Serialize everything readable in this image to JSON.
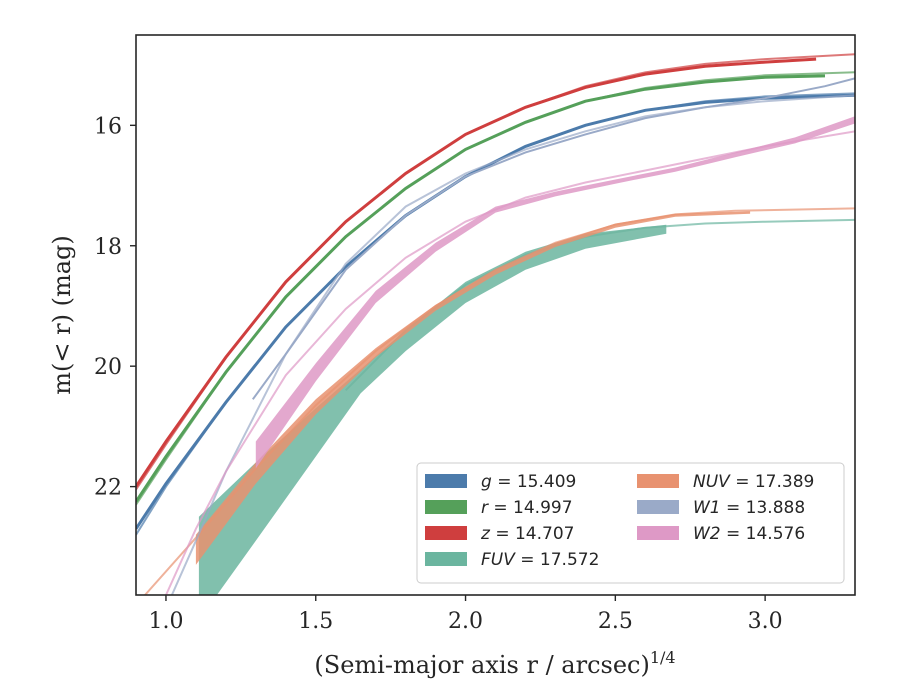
{
  "chart_data": {
    "type": "line",
    "xlabel": "(Semi-major axis r / arcsec)",
    "xlabel_sup": "1/4",
    "ylabel": "m(< r) (mag)",
    "xlim": [
      0.9,
      3.3
    ],
    "ylim": [
      23.8,
      14.5
    ],
    "y_inverted": true,
    "x_ticks": [
      1.0,
      1.5,
      2.0,
      2.5,
      3.0
    ],
    "x_tick_labels": [
      "1.0",
      "1.5",
      "2.0",
      "2.5",
      "3.0"
    ],
    "y_ticks": [
      16,
      18,
      20,
      22
    ],
    "y_tick_labels": [
      "16",
      "18",
      "20",
      "22"
    ],
    "grid": false,
    "legend_placement": "lower-right",
    "series": [
      {
        "name": "g = 15.409",
        "band": "g",
        "value": "15.409",
        "color": "#4c7bab",
        "fit": [
          [
            0.9,
            22.8
          ],
          [
            1.0,
            22.0
          ],
          [
            1.2,
            20.6
          ],
          [
            1.4,
            19.35
          ],
          [
            1.6,
            18.35
          ],
          [
            1.8,
            17.5
          ],
          [
            2.0,
            16.85
          ],
          [
            2.2,
            16.35
          ],
          [
            2.4,
            16.0
          ],
          [
            2.6,
            15.75
          ],
          [
            2.8,
            15.6
          ],
          [
            3.0,
            15.52
          ],
          [
            3.3,
            15.47
          ]
        ],
        "data": [
          [
            0.9,
            22.7
          ],
          [
            1.0,
            21.95
          ],
          [
            1.2,
            20.6
          ],
          [
            1.4,
            19.35
          ],
          [
            1.6,
            18.35
          ],
          [
            1.8,
            17.5
          ],
          [
            2.0,
            16.85
          ],
          [
            2.2,
            16.35
          ],
          [
            2.4,
            16.0
          ],
          [
            2.6,
            15.75
          ],
          [
            2.8,
            15.62
          ],
          [
            3.0,
            15.55
          ],
          [
            3.3,
            15.5
          ]
        ],
        "width": 3
      },
      {
        "name": "r = 14.997",
        "band": "r",
        "value": "14.997",
        "color": "#55a05a",
        "fit": [
          [
            0.9,
            22.3
          ],
          [
            1.0,
            21.55
          ],
          [
            1.2,
            20.1
          ],
          [
            1.4,
            18.85
          ],
          [
            1.6,
            17.85
          ],
          [
            1.8,
            17.05
          ],
          [
            2.0,
            16.4
          ],
          [
            2.2,
            15.95
          ],
          [
            2.4,
            15.6
          ],
          [
            2.6,
            15.38
          ],
          [
            2.8,
            15.25
          ],
          [
            3.0,
            15.17
          ],
          [
            3.3,
            15.12
          ]
        ],
        "data": [
          [
            0.9,
            22.25
          ],
          [
            1.0,
            21.5
          ],
          [
            1.2,
            20.1
          ],
          [
            1.4,
            18.85
          ],
          [
            1.6,
            17.85
          ],
          [
            1.8,
            17.05
          ],
          [
            2.0,
            16.4
          ],
          [
            2.2,
            15.95
          ],
          [
            2.4,
            15.6
          ],
          [
            2.6,
            15.4
          ],
          [
            2.8,
            15.28
          ],
          [
            3.0,
            15.2
          ],
          [
            3.2,
            15.18
          ]
        ],
        "width": 3
      },
      {
        "name": "z = 14.707",
        "band": "z",
        "value": "14.707",
        "color": "#cf3e3e",
        "fit": [
          [
            0.9,
            22.05
          ],
          [
            1.0,
            21.3
          ],
          [
            1.2,
            19.85
          ],
          [
            1.4,
            18.6
          ],
          [
            1.6,
            17.6
          ],
          [
            1.8,
            16.8
          ],
          [
            2.0,
            16.15
          ],
          [
            2.2,
            15.7
          ],
          [
            2.4,
            15.35
          ],
          [
            2.6,
            15.12
          ],
          [
            2.8,
            14.98
          ],
          [
            3.0,
            14.9
          ],
          [
            3.3,
            14.82
          ]
        ],
        "data": [
          [
            0.9,
            22.0
          ],
          [
            1.0,
            21.25
          ],
          [
            1.2,
            19.85
          ],
          [
            1.4,
            18.6
          ],
          [
            1.6,
            17.6
          ],
          [
            1.8,
            16.8
          ],
          [
            2.0,
            16.15
          ],
          [
            2.2,
            15.7
          ],
          [
            2.4,
            15.37
          ],
          [
            2.6,
            15.15
          ],
          [
            2.8,
            15.02
          ],
          [
            3.0,
            14.95
          ],
          [
            3.17,
            14.9
          ]
        ],
        "width": 3
      },
      {
        "name": "FUV = 17.572",
        "band": "FUV",
        "value": "17.572",
        "color": "#6bb59f",
        "fit": [
          [
            1.6,
            20.4
          ],
          [
            1.8,
            19.4
          ],
          [
            2.0,
            18.65
          ],
          [
            2.2,
            18.15
          ],
          [
            2.4,
            17.85
          ],
          [
            2.6,
            17.7
          ],
          [
            2.8,
            17.63
          ],
          [
            3.0,
            17.6
          ],
          [
            3.3,
            17.57
          ]
        ],
        "band_upper": [
          [
            1.11,
            22.5
          ],
          [
            1.3,
            21.6
          ],
          [
            1.5,
            20.7
          ],
          [
            1.65,
            20.05
          ],
          [
            1.8,
            19.4
          ],
          [
            2.0,
            18.6
          ],
          [
            2.2,
            18.1
          ],
          [
            2.4,
            17.8
          ],
          [
            2.67,
            17.65
          ]
        ],
        "band_lower": [
          [
            1.11,
            23.8
          ],
          [
            1.17,
            23.8
          ],
          [
            1.3,
            22.9
          ],
          [
            1.5,
            21.5
          ],
          [
            1.65,
            20.45
          ],
          [
            1.8,
            19.75
          ],
          [
            2.0,
            18.95
          ],
          [
            2.2,
            18.4
          ],
          [
            2.4,
            18.05
          ],
          [
            2.67,
            17.8
          ]
        ]
      },
      {
        "name": "NUV = 17.389",
        "band": "NUV",
        "value": "17.389",
        "color": "#e89270",
        "fit": [
          [
            0.93,
            23.8
          ],
          [
            1.1,
            22.85
          ],
          [
            1.3,
            21.7
          ],
          [
            1.5,
            20.65
          ],
          [
            1.7,
            19.75
          ],
          [
            1.9,
            19.0
          ],
          [
            2.1,
            18.4
          ],
          [
            2.3,
            17.95
          ],
          [
            2.5,
            17.65
          ],
          [
            2.7,
            17.48
          ],
          [
            2.9,
            17.42
          ],
          [
            3.3,
            17.38
          ]
        ],
        "band_upper": [
          [
            1.1,
            22.8
          ],
          [
            1.3,
            21.6
          ],
          [
            1.5,
            20.55
          ],
          [
            1.7,
            19.7
          ],
          [
            1.9,
            18.98
          ],
          [
            2.1,
            18.4
          ],
          [
            2.3,
            17.95
          ],
          [
            2.5,
            17.63
          ],
          [
            2.7,
            17.47
          ],
          [
            2.95,
            17.43
          ]
        ],
        "band_lower": [
          [
            1.1,
            23.3
          ],
          [
            1.3,
            21.95
          ],
          [
            1.5,
            20.8
          ],
          [
            1.7,
            19.85
          ],
          [
            1.9,
            19.08
          ],
          [
            2.1,
            18.48
          ],
          [
            2.3,
            18.02
          ],
          [
            2.5,
            17.7
          ],
          [
            2.7,
            17.52
          ],
          [
            2.95,
            17.47
          ]
        ]
      },
      {
        "name": "W1 = 13.888",
        "band": "W1",
        "value": "13.888",
        "color": "#9aaac8",
        "fit": [
          [
            1.02,
            23.8
          ],
          [
            1.1,
            22.9
          ],
          [
            1.2,
            21.75
          ],
          [
            1.4,
            19.8
          ],
          [
            1.6,
            18.3
          ],
          [
            1.8,
            17.35
          ],
          [
            2.0,
            16.8
          ],
          [
            2.2,
            16.4
          ],
          [
            2.4,
            16.1
          ],
          [
            2.6,
            15.85
          ],
          [
            2.8,
            15.7
          ],
          [
            3.0,
            15.6
          ],
          [
            3.3,
            15.5
          ]
        ],
        "data": [
          [
            1.29,
            20.55
          ],
          [
            1.4,
            19.8
          ],
          [
            1.6,
            18.4
          ],
          [
            1.8,
            17.5
          ],
          [
            2.0,
            16.85
          ],
          [
            2.2,
            16.45
          ],
          [
            2.4,
            16.15
          ],
          [
            2.6,
            15.88
          ],
          [
            2.8,
            15.7
          ],
          [
            3.0,
            15.55
          ],
          [
            3.2,
            15.35
          ],
          [
            3.3,
            15.22
          ]
        ],
        "width": 2
      },
      {
        "name": "W2 = 14.576",
        "band": "W2",
        "value": "14.576",
        "color": "#de99c6",
        "fit": [
          [
            1.0,
            23.8
          ],
          [
            1.1,
            22.7
          ],
          [
            1.2,
            21.75
          ],
          [
            1.4,
            20.15
          ],
          [
            1.6,
            19.05
          ],
          [
            1.8,
            18.2
          ],
          [
            2.0,
            17.6
          ],
          [
            2.2,
            17.2
          ],
          [
            2.4,
            16.95
          ],
          [
            2.6,
            16.75
          ],
          [
            2.8,
            16.55
          ],
          [
            3.0,
            16.35
          ],
          [
            3.3,
            16.1
          ]
        ],
        "band_upper": [
          [
            1.3,
            21.25
          ],
          [
            1.5,
            19.95
          ],
          [
            1.7,
            18.75
          ],
          [
            1.9,
            17.95
          ],
          [
            2.1,
            17.35
          ],
          [
            2.3,
            17.1
          ],
          [
            2.5,
            16.9
          ],
          [
            2.7,
            16.7
          ],
          [
            2.9,
            16.45
          ],
          [
            3.1,
            16.2
          ],
          [
            3.3,
            15.85
          ]
        ],
        "band_lower": [
          [
            1.3,
            21.7
          ],
          [
            1.5,
            20.25
          ],
          [
            1.7,
            18.95
          ],
          [
            1.9,
            18.1
          ],
          [
            2.1,
            17.45
          ],
          [
            2.3,
            17.18
          ],
          [
            2.5,
            16.97
          ],
          [
            2.7,
            16.77
          ],
          [
            2.9,
            16.53
          ],
          [
            3.1,
            16.3
          ],
          [
            3.3,
            15.97
          ]
        ]
      }
    ],
    "legend": [
      {
        "band": "g",
        "value": "15.409",
        "color": "#4c7bab"
      },
      {
        "band": "r",
        "value": "14.997",
        "color": "#55a05a"
      },
      {
        "band": "z",
        "value": "14.707",
        "color": "#cf3e3e"
      },
      {
        "band": "FUV",
        "value": "17.572",
        "color": "#6bb59f"
      },
      {
        "band": "NUV",
        "value": "17.389",
        "color": "#e89270"
      },
      {
        "band": "W1",
        "value": "13.888",
        "color": "#9aaac8"
      },
      {
        "band": "W2",
        "value": "14.576",
        "color": "#de99c6"
      }
    ]
  }
}
